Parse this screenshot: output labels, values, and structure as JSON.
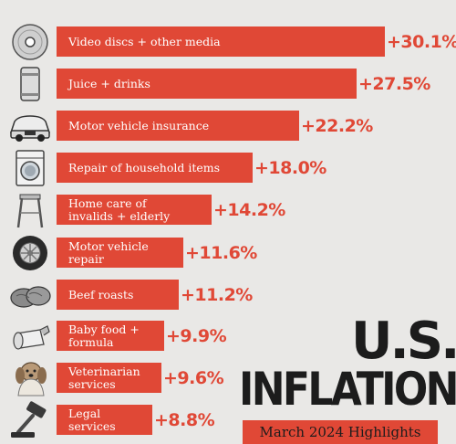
{
  "chart_data": {
    "type": "bar",
    "orientation": "horizontal",
    "title": "U.S. INFLATION",
    "title_line1": "U.S.",
    "title_line2": "INFLATION",
    "subtitle": "March 2024 Highlights",
    "categories": [
      "Video discs + other media",
      "Juice + drinks",
      "Motor vehicle insurance",
      "Repair of household items",
      "Home care of\ninvalids + elderly",
      "Motor vehicle\nrepair",
      "Beef roasts",
      "Baby food +\nformula",
      "Veterinarian\nservices",
      "Legal\nservices"
    ],
    "values": [
      30.1,
      27.5,
      22.2,
      18.0,
      14.2,
      11.6,
      11.2,
      9.9,
      9.6,
      8.8
    ],
    "value_labels": [
      "+30.1%",
      "+27.5%",
      "+22.2%",
      "+18.0%",
      "+14.2%",
      "+11.6%",
      "+11.2%",
      "+9.9%",
      "+9.6%",
      "+8.8%"
    ],
    "icons": [
      "disc-icon",
      "can-icon",
      "car-icon",
      "washing-machine-icon",
      "walker-icon",
      "tire-icon",
      "beef-roast-icon",
      "baby-bottle-icon",
      "dog-icon",
      "gavel-icon"
    ],
    "xlim": [
      0,
      30.1
    ],
    "grid": false,
    "legend": "none",
    "bar_color": "#e04836",
    "text_color": "#1c1c1c",
    "background": "#e9e8e6"
  }
}
